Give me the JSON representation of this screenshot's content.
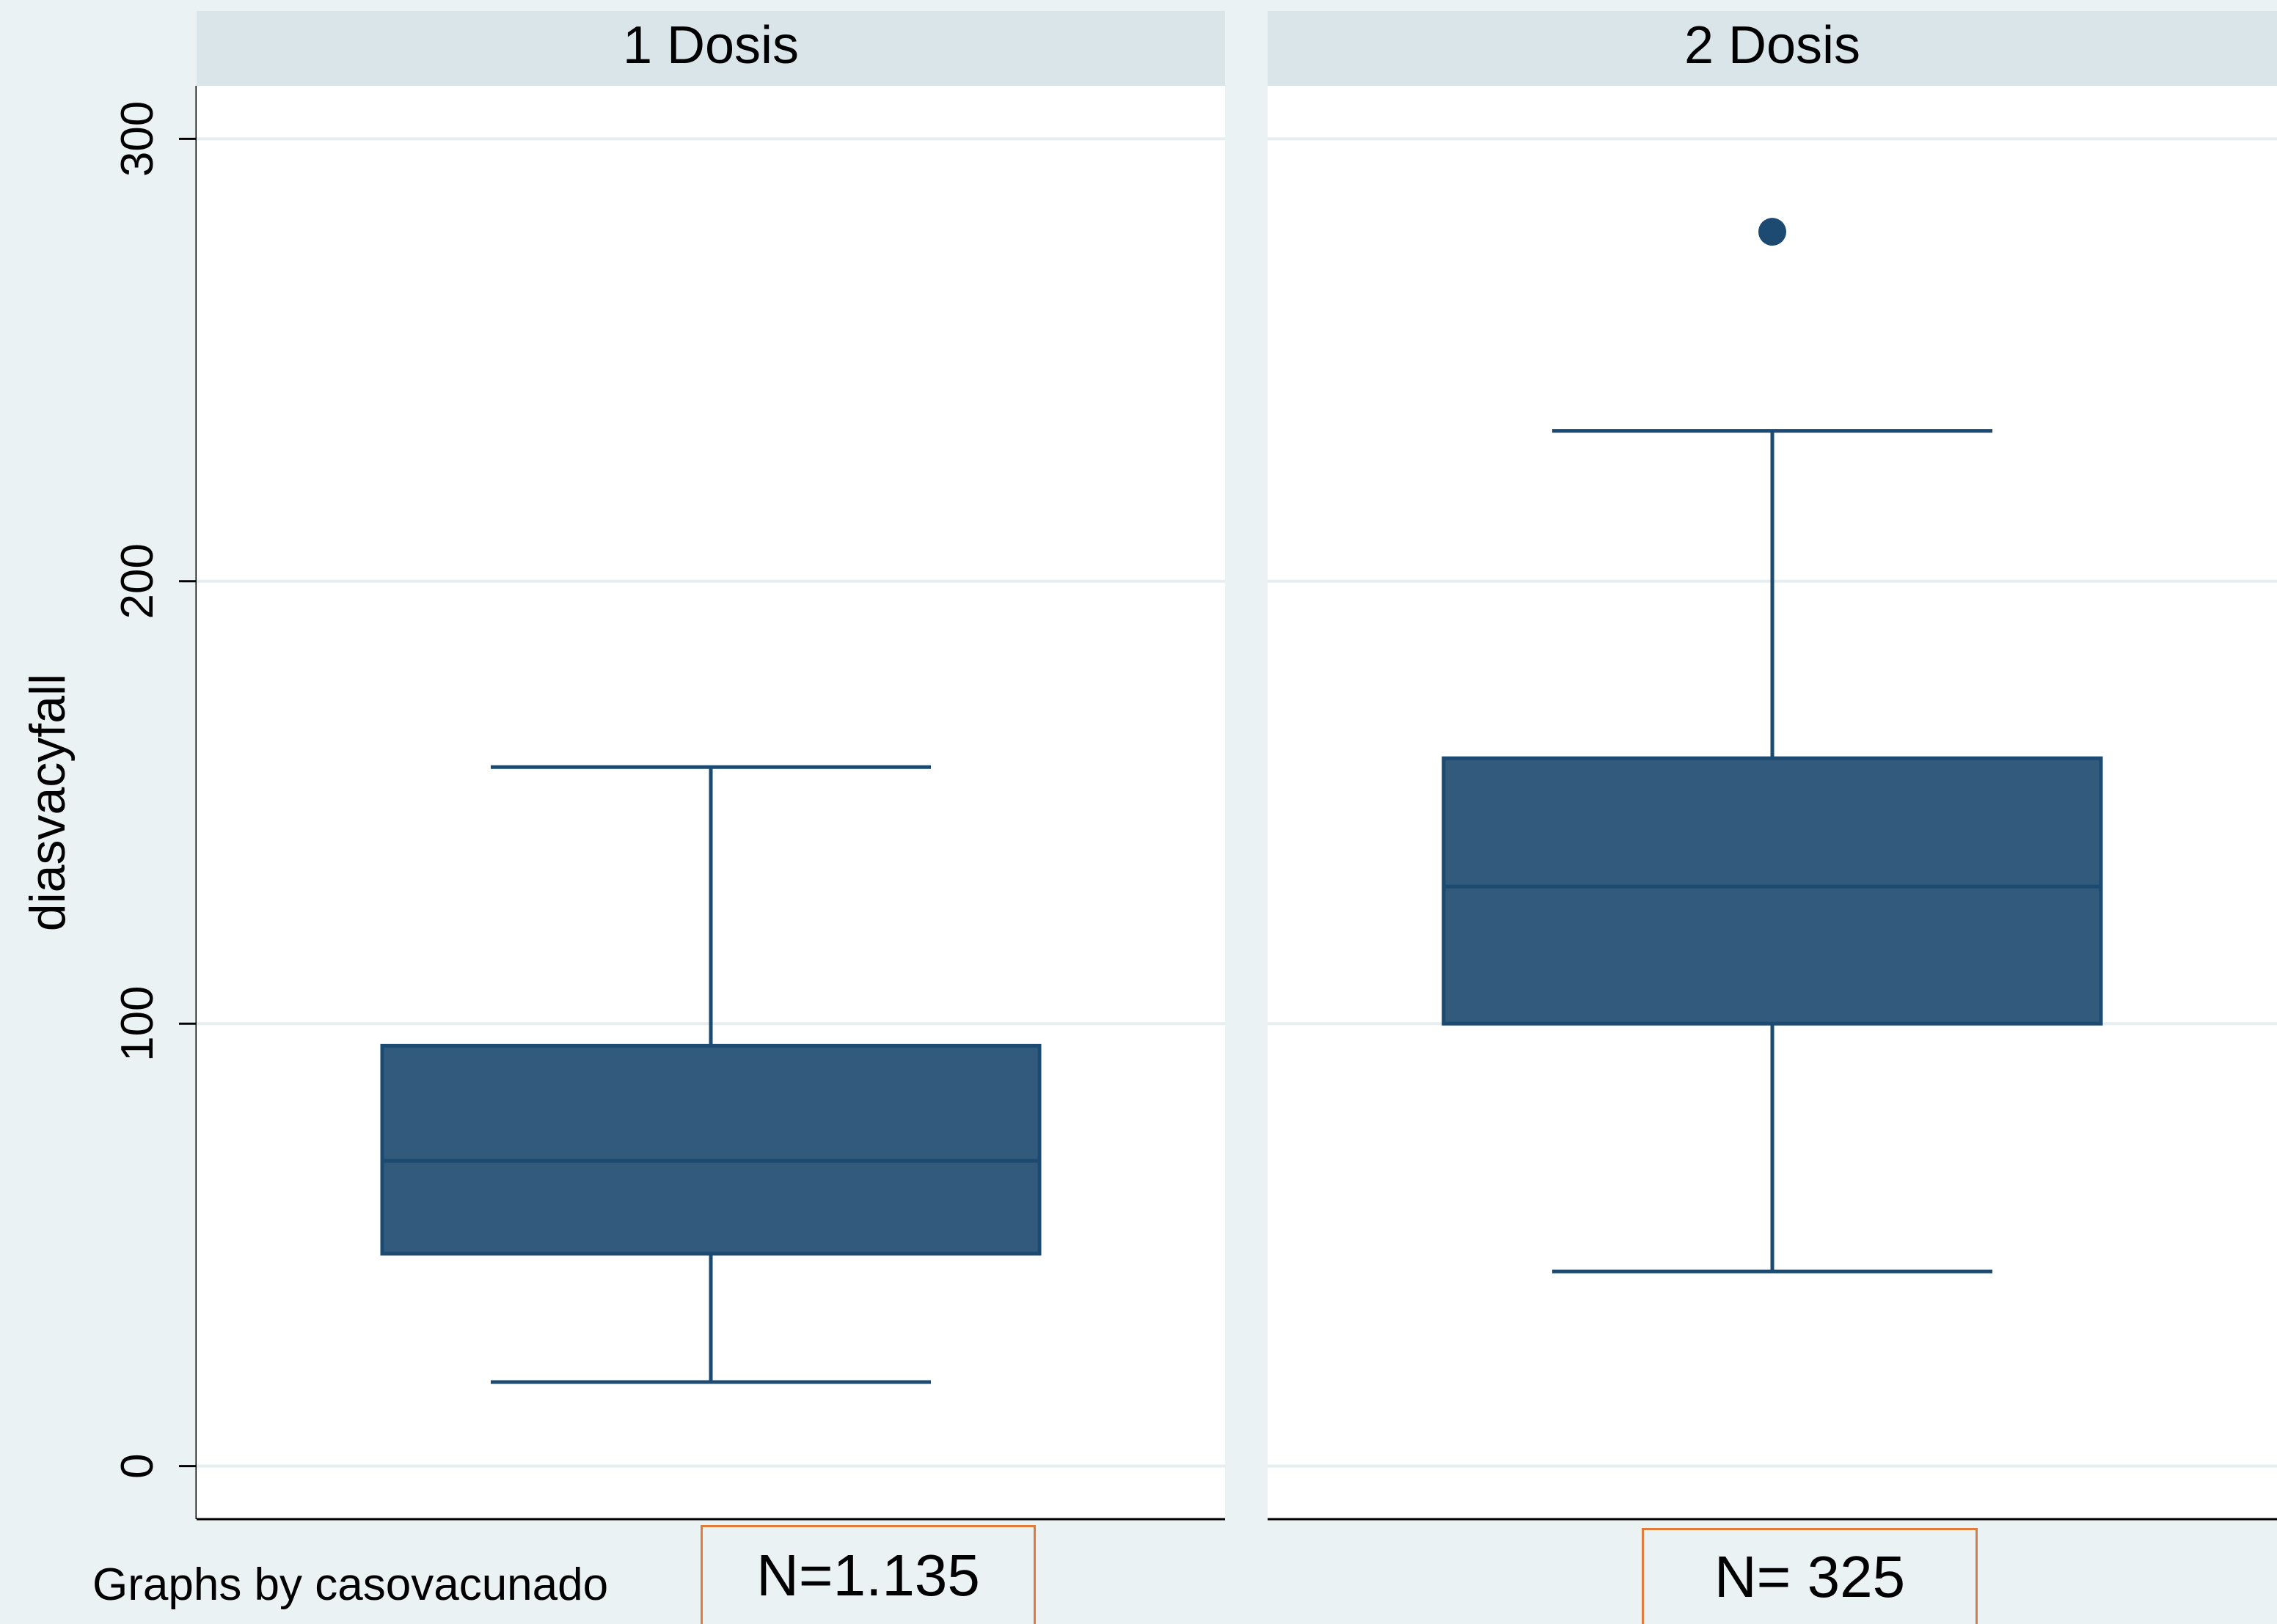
{
  "chart_data": {
    "type": "box",
    "ylabel": "diasvacyfall",
    "ylim": [
      -12,
      312
    ],
    "yticks": [
      0,
      100,
      200,
      300
    ],
    "grid": true,
    "panels": [
      {
        "title": "1 Dosis",
        "box": {
          "whisker_low": 19,
          "q1": 48,
          "median": 69,
          "q3": 95,
          "whisker_high": 158
        },
        "outliers": []
      },
      {
        "title": "2 Dosis",
        "box": {
          "whisker_low": 44,
          "q1": 100,
          "median": 131,
          "q3": 160,
          "whisker_high": 234
        },
        "outliers": [
          279
        ]
      }
    ],
    "note": "Graphs by casovacunado",
    "colors": {
      "box_fill": "#325a7d",
      "box_stroke": "#1c4a70",
      "panel_header": "#d9e5e9",
      "background": "#eaf2f3",
      "grid": "#e6eef0"
    }
  },
  "annotations": {
    "n_panel1": "N=1.135",
    "n_panel2": "N= 325"
  }
}
